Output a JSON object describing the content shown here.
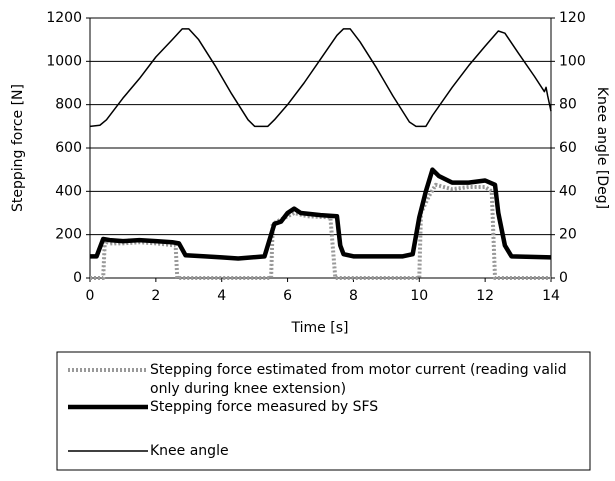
{
  "chart_data": {
    "type": "line",
    "xlabel": "Time [s]",
    "ylabel": "Stepping force [N]",
    "y2label": "Knee angle [Deg]",
    "xlim": [
      0,
      14
    ],
    "xticks": [
      0,
      2,
      4,
      6,
      8,
      10,
      12,
      14
    ],
    "ylim": [
      0,
      1200
    ],
    "yticks": [
      0,
      200,
      400,
      600,
      800,
      1000,
      1200
    ],
    "y2lim": [
      0,
      120
    ],
    "y2ticks": [
      0,
      20,
      40,
      60,
      80,
      100,
      120
    ],
    "grid": true,
    "series": [
      {
        "name": "Stepping force estimated from motor current (reading valid only during knee extension)",
        "color": "#999999",
        "style": "dotted",
        "x": [
          0,
          0.4,
          0.45,
          0.6,
          1,
          1.5,
          2,
          2.6,
          2.65,
          5.5,
          5.55,
          5.8,
          6.2,
          6.6,
          7.3,
          7.45,
          10,
          10.05,
          10.3,
          10.5,
          11,
          11.5,
          12,
          12.2,
          12.3,
          14
        ],
        "values": [
          0,
          0,
          170,
          160,
          160,
          165,
          160,
          150,
          0,
          0,
          250,
          270,
          300,
          285,
          280,
          0,
          0,
          300,
          380,
          430,
          410,
          420,
          420,
          400,
          0,
          0
        ]
      },
      {
        "name": "Stepping force measured by SFS",
        "color": "#000000",
        "style": "thick",
        "x": [
          0,
          0.2,
          0.4,
          0.6,
          1,
          1.5,
          2,
          2.5,
          2.7,
          2.9,
          3.5,
          4,
          4.5,
          5.3,
          5.5,
          5.6,
          5.8,
          6,
          6.2,
          6.4,
          7,
          7.5,
          7.6,
          7.7,
          8,
          9.5,
          9.8,
          10,
          10.2,
          10.4,
          10.6,
          11,
          11.5,
          12,
          12.3,
          12.4,
          12.6,
          12.8,
          14
        ],
        "values": [
          100,
          100,
          180,
          175,
          170,
          175,
          170,
          165,
          160,
          105,
          100,
          95,
          90,
          100,
          200,
          250,
          260,
          300,
          320,
          300,
          290,
          285,
          150,
          110,
          100,
          100,
          110,
          280,
          400,
          500,
          470,
          440,
          440,
          450,
          430,
          300,
          150,
          100,
          95
        ]
      },
      {
        "name": "Knee angle",
        "color": "#000000",
        "style": "thin",
        "axis": "y2",
        "x": [
          0,
          0.3,
          0.5,
          1,
          1.5,
          2,
          2.5,
          2.8,
          3,
          3.3,
          3.8,
          4.3,
          4.8,
          5,
          5.4,
          5.6,
          6,
          6.5,
          7,
          7.5,
          7.7,
          7.9,
          8.2,
          8.7,
          9.2,
          9.7,
          9.9,
          10.2,
          10.4,
          11,
          11.5,
          12,
          12.4,
          12.6,
          13,
          13.5,
          13.8,
          13.85,
          13.9,
          14
        ],
        "values": [
          70,
          70.5,
          73,
          83,
          92,
          102,
          110,
          115,
          115,
          110,
          98,
          85,
          73,
          70,
          70,
          73,
          80,
          90,
          101,
          112,
          115,
          115,
          109,
          97,
          84,
          72,
          70,
          70,
          75,
          88,
          98,
          107,
          114,
          113,
          104,
          93,
          86,
          88,
          84,
          77
        ]
      }
    ]
  }
}
